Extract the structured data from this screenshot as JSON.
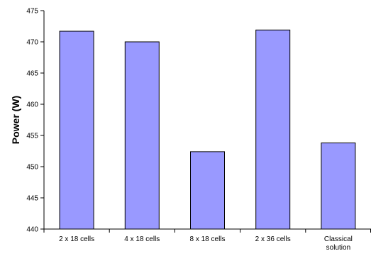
{
  "chart_data": {
    "type": "bar",
    "categories": [
      "2 x 18 cells",
      "4 x 18 cells",
      "8 x 18 cells",
      "2 x 36 cells",
      "Classical solution"
    ],
    "category_lines": [
      [
        "2 x 18 cells"
      ],
      [
        "4 x 18 cells"
      ],
      [
        "8 x 18 cells"
      ],
      [
        "2 x 36 cells"
      ],
      [
        "Classical",
        "solution"
      ]
    ],
    "values": [
      471.7,
      470.0,
      452.4,
      471.9,
      453.8
    ],
    "ylabel": "Power (W)",
    "xlabel": "",
    "ylim": [
      440,
      475
    ],
    "yticks": [
      440,
      445,
      450,
      455,
      460,
      465,
      470,
      475
    ],
    "grid": false,
    "legend": "none",
    "colors": {
      "bar_fill": "#9999ff",
      "bar_stroke": "#000000",
      "axis": "#000000"
    }
  }
}
